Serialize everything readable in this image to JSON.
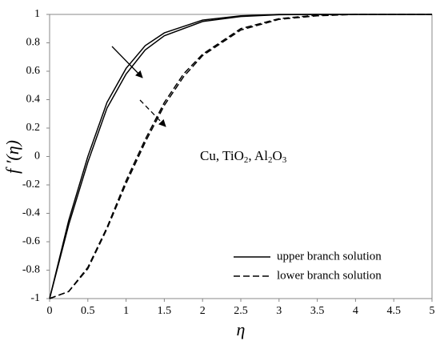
{
  "chart_data": {
    "type": "line",
    "xlabel": "η",
    "ylabel": "f ′(η)",
    "annotation": "Cu, TiO2, Al2O3",
    "xlim": [
      0,
      5
    ],
    "xticks": [
      0,
      0.5,
      1,
      1.5,
      2,
      2.5,
      3,
      3.5,
      4,
      4.5,
      5
    ],
    "ylim": [
      -1,
      1
    ],
    "yticks": [
      -1,
      -0.8,
      -0.6,
      -0.4,
      -0.2,
      0,
      0.2,
      0.4,
      0.6,
      0.8,
      1
    ],
    "grid": false,
    "legend": "lower right",
    "series": [
      {
        "name": "upper branch solution",
        "color": "#000000",
        "line_style": "solid",
        "x": [
          0,
          0.25,
          0.5,
          0.75,
          1,
          1.25,
          1.5,
          2,
          2.5,
          3,
          3.5,
          4,
          5
        ],
        "values": [
          -1,
          -0.45,
          0.0,
          0.38,
          0.62,
          0.78,
          0.87,
          0.96,
          0.99,
          1,
          1,
          1,
          1
        ]
      },
      {
        "color": "#000000",
        "line_style": "solid",
        "x": [
          0,
          0.25,
          0.5,
          0.75,
          1,
          1.25,
          1.5,
          2,
          2.5,
          3,
          3.5,
          4,
          5
        ],
        "values": [
          -1,
          -0.48,
          -0.04,
          0.34,
          0.58,
          0.75,
          0.85,
          0.95,
          0.985,
          0.998,
          1,
          1,
          1
        ]
      },
      {
        "name": "lower branch solution",
        "color": "#000000",
        "line_style": "dashed",
        "x": [
          0,
          0.25,
          0.5,
          0.75,
          1,
          1.25,
          1.5,
          1.75,
          2,
          2.5,
          3,
          3.5,
          4,
          5
        ],
        "values": [
          -1,
          -0.95,
          -0.78,
          -0.5,
          -0.17,
          0.12,
          0.38,
          0.58,
          0.72,
          0.9,
          0.97,
          0.995,
          1,
          1
        ]
      },
      {
        "color": "#000000",
        "line_style": "dashed",
        "x": [
          0,
          0.25,
          0.5,
          0.75,
          1,
          1.25,
          1.5,
          1.75,
          2,
          2.5,
          3,
          3.5,
          4,
          5
        ],
        "values": [
          -1,
          -0.95,
          -0.79,
          -0.51,
          -0.19,
          0.1,
          0.36,
          0.56,
          0.71,
          0.89,
          0.965,
          0.99,
          1,
          1
        ]
      }
    ]
  }
}
